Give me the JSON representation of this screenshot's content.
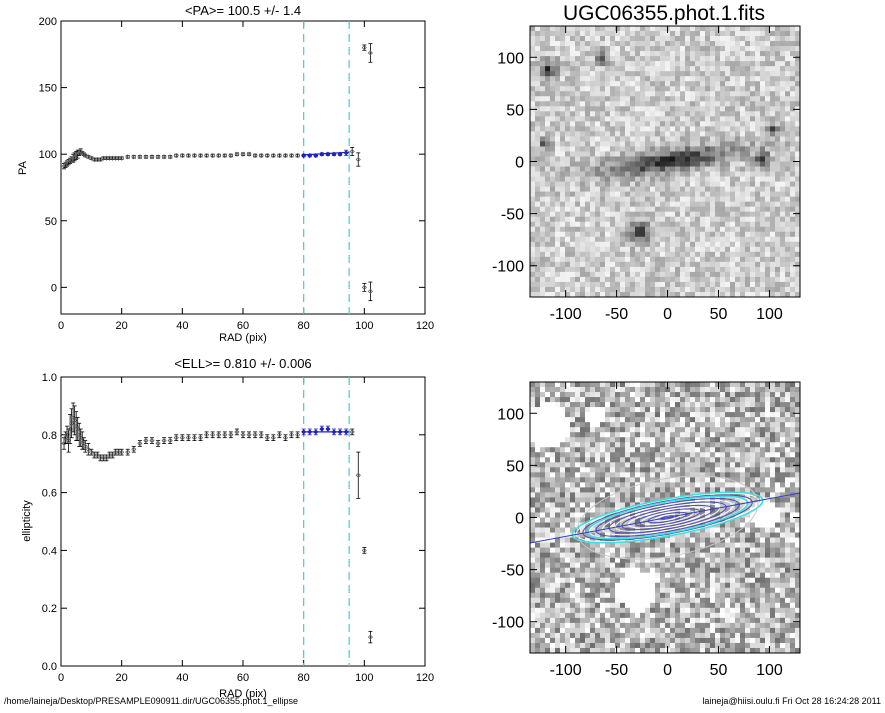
{
  "panel_pa": {
    "title": "<PA>= 100.5 +/-   1.4",
    "xlabel": "RAD (pix)",
    "ylabel": "PA"
  },
  "panel_ell": {
    "title": "<ELL>= 0.810 +/-  0.006",
    "xlabel": "RAD (pix)",
    "ylabel": "ellipticity"
  },
  "image_top": {
    "title": "UGC06355.phot.1.fits"
  },
  "footer": {
    "left": "/home/laineja/Desktop/PRESAMPLE090911.dir/UGC06355.phot.1_ellipse",
    "right": "laineja@hiisi.oulu.fi  Fri Oct 28 16:24:28 2011"
  },
  "colors": {
    "fit": "#2020c0",
    "marker": "#606060",
    "vline": "#40d0d0",
    "ellipse": "#40e0e0"
  },
  "chart_data": [
    {
      "type": "scatter",
      "name_ref": "panel_pa",
      "xlim": [
        0,
        120
      ],
      "ylim": [
        -20,
        200
      ],
      "xticks": [
        0,
        20,
        40,
        60,
        80,
        100,
        120
      ],
      "yticks": [
        0,
        50,
        100,
        150,
        200
      ],
      "vlines": [
        80,
        95
      ],
      "x": [
        1,
        1.5,
        2,
        2.5,
        3,
        3.5,
        4,
        4.5,
        5,
        5.5,
        6,
        6.5,
        7,
        7.5,
        8,
        9,
        10,
        11,
        12,
        13,
        14,
        15,
        16,
        17,
        18,
        19,
        20,
        22,
        24,
        26,
        28,
        30,
        32,
        34,
        36,
        38,
        40,
        42,
        44,
        46,
        48,
        50,
        52,
        54,
        56,
        58,
        60,
        62,
        64,
        66,
        68,
        70,
        72,
        74,
        76,
        78,
        80,
        82,
        84,
        86,
        88,
        90,
        92,
        94,
        96,
        98,
        100,
        100,
        102,
        102
      ],
      "y": [
        91,
        92,
        93,
        94,
        95,
        96,
        97,
        98,
        99,
        100,
        101,
        102,
        101,
        100,
        99,
        98,
        97,
        96,
        96,
        96,
        97,
        97,
        97,
        97,
        97,
        97,
        97,
        98,
        98,
        98,
        98,
        98,
        98,
        98,
        98,
        99,
        99,
        99,
        99,
        99,
        99,
        99,
        99,
        99,
        99,
        100,
        100,
        100,
        99,
        99,
        99,
        99,
        99,
        99,
        99,
        99,
        99,
        99,
        99,
        100,
        100,
        100,
        100,
        101,
        102,
        96,
        180,
        0,
        176,
        -3
      ],
      "yerr": [
        2,
        2,
        2,
        2,
        2,
        2,
        3,
        3,
        3,
        3,
        2,
        2,
        1,
        1,
        1,
        1,
        1,
        1,
        1,
        1,
        1,
        1,
        1,
        1,
        1,
        1,
        1,
        1,
        1,
        1,
        1,
        1,
        1,
        1,
        1,
        1,
        1,
        1,
        1,
        1,
        1,
        1,
        1,
        1,
        1,
        1,
        1,
        1,
        1,
        1,
        1,
        1,
        1,
        1,
        1,
        1,
        1,
        1,
        1,
        1,
        1,
        1,
        1,
        2,
        3,
        5,
        2,
        3,
        7,
        7
      ],
      "fit": {
        "x0": 80,
        "x1": 95,
        "y0": 99.5,
        "y1": 101.5
      }
    },
    {
      "type": "scatter",
      "name_ref": "panel_ell",
      "xlim": [
        0,
        120
      ],
      "ylim": [
        0,
        1.0
      ],
      "xticks": [
        0,
        20,
        40,
        60,
        80,
        100,
        120
      ],
      "yticks": [
        0.0,
        0.2,
        0.4,
        0.6,
        0.8,
        1.0
      ],
      "vlines": [
        80,
        95
      ],
      "x": [
        1,
        1.5,
        2,
        2.5,
        3,
        3.5,
        4,
        4.5,
        5,
        5.5,
        6,
        6.5,
        7,
        7.5,
        8,
        9,
        10,
        11,
        12,
        13,
        14,
        15,
        16,
        17,
        18,
        19,
        20,
        22,
        24,
        26,
        28,
        30,
        32,
        34,
        36,
        38,
        40,
        42,
        44,
        46,
        48,
        50,
        52,
        54,
        56,
        58,
        60,
        62,
        64,
        66,
        68,
        70,
        72,
        74,
        76,
        78,
        80,
        82,
        84,
        86,
        88,
        90,
        92,
        94,
        96,
        98,
        100,
        102
      ],
      "y": [
        0.77,
        0.79,
        0.8,
        0.78,
        0.82,
        0.84,
        0.86,
        0.85,
        0.83,
        0.82,
        0.8,
        0.79,
        0.78,
        0.77,
        0.76,
        0.75,
        0.74,
        0.73,
        0.73,
        0.72,
        0.72,
        0.72,
        0.73,
        0.73,
        0.74,
        0.74,
        0.74,
        0.74,
        0.75,
        0.77,
        0.78,
        0.78,
        0.77,
        0.78,
        0.78,
        0.79,
        0.79,
        0.79,
        0.79,
        0.79,
        0.8,
        0.8,
        0.8,
        0.8,
        0.8,
        0.81,
        0.8,
        0.8,
        0.8,
        0.8,
        0.79,
        0.79,
        0.8,
        0.79,
        0.8,
        0.8,
        0.81,
        0.81,
        0.81,
        0.82,
        0.82,
        0.81,
        0.81,
        0.81,
        0.81,
        0.66,
        0.4,
        0.1
      ],
      "yerr": [
        0.02,
        0.02,
        0.03,
        0.04,
        0.05,
        0.05,
        0.05,
        0.05,
        0.05,
        0.04,
        0.04,
        0.03,
        0.03,
        0.02,
        0.02,
        0.02,
        0.01,
        0.01,
        0.01,
        0.01,
        0.01,
        0.01,
        0.01,
        0.01,
        0.01,
        0.01,
        0.01,
        0.01,
        0.01,
        0.01,
        0.01,
        0.01,
        0.01,
        0.01,
        0.01,
        0.01,
        0.01,
        0.01,
        0.01,
        0.01,
        0.01,
        0.01,
        0.01,
        0.01,
        0.01,
        0.01,
        0.01,
        0.01,
        0.01,
        0.01,
        0.01,
        0.01,
        0.01,
        0.01,
        0.01,
        0.01,
        0.01,
        0.01,
        0.01,
        0.01,
        0.01,
        0.01,
        0.01,
        0.01,
        0.01,
        0.08,
        0.01,
        0.02
      ],
      "fit": {
        "x0": 80,
        "x1": 95,
        "y0": 0.81,
        "y1": 0.81
      }
    },
    {
      "type": "heatmap",
      "name_ref": "image_top",
      "xlim": [
        -135,
        130
      ],
      "ylim": [
        -130,
        130
      ],
      "xticks": [
        -100,
        -50,
        0,
        50,
        100
      ],
      "yticks": [
        -100,
        -50,
        0,
        50,
        100
      ]
    },
    {
      "type": "heatmap",
      "name_ref": "image_bottom",
      "xlim": [
        -135,
        130
      ],
      "ylim": [
        -130,
        130
      ],
      "xticks": [
        -100,
        -50,
        0,
        50,
        100
      ],
      "yticks": [
        -100,
        -50,
        0,
        50,
        100
      ]
    }
  ]
}
